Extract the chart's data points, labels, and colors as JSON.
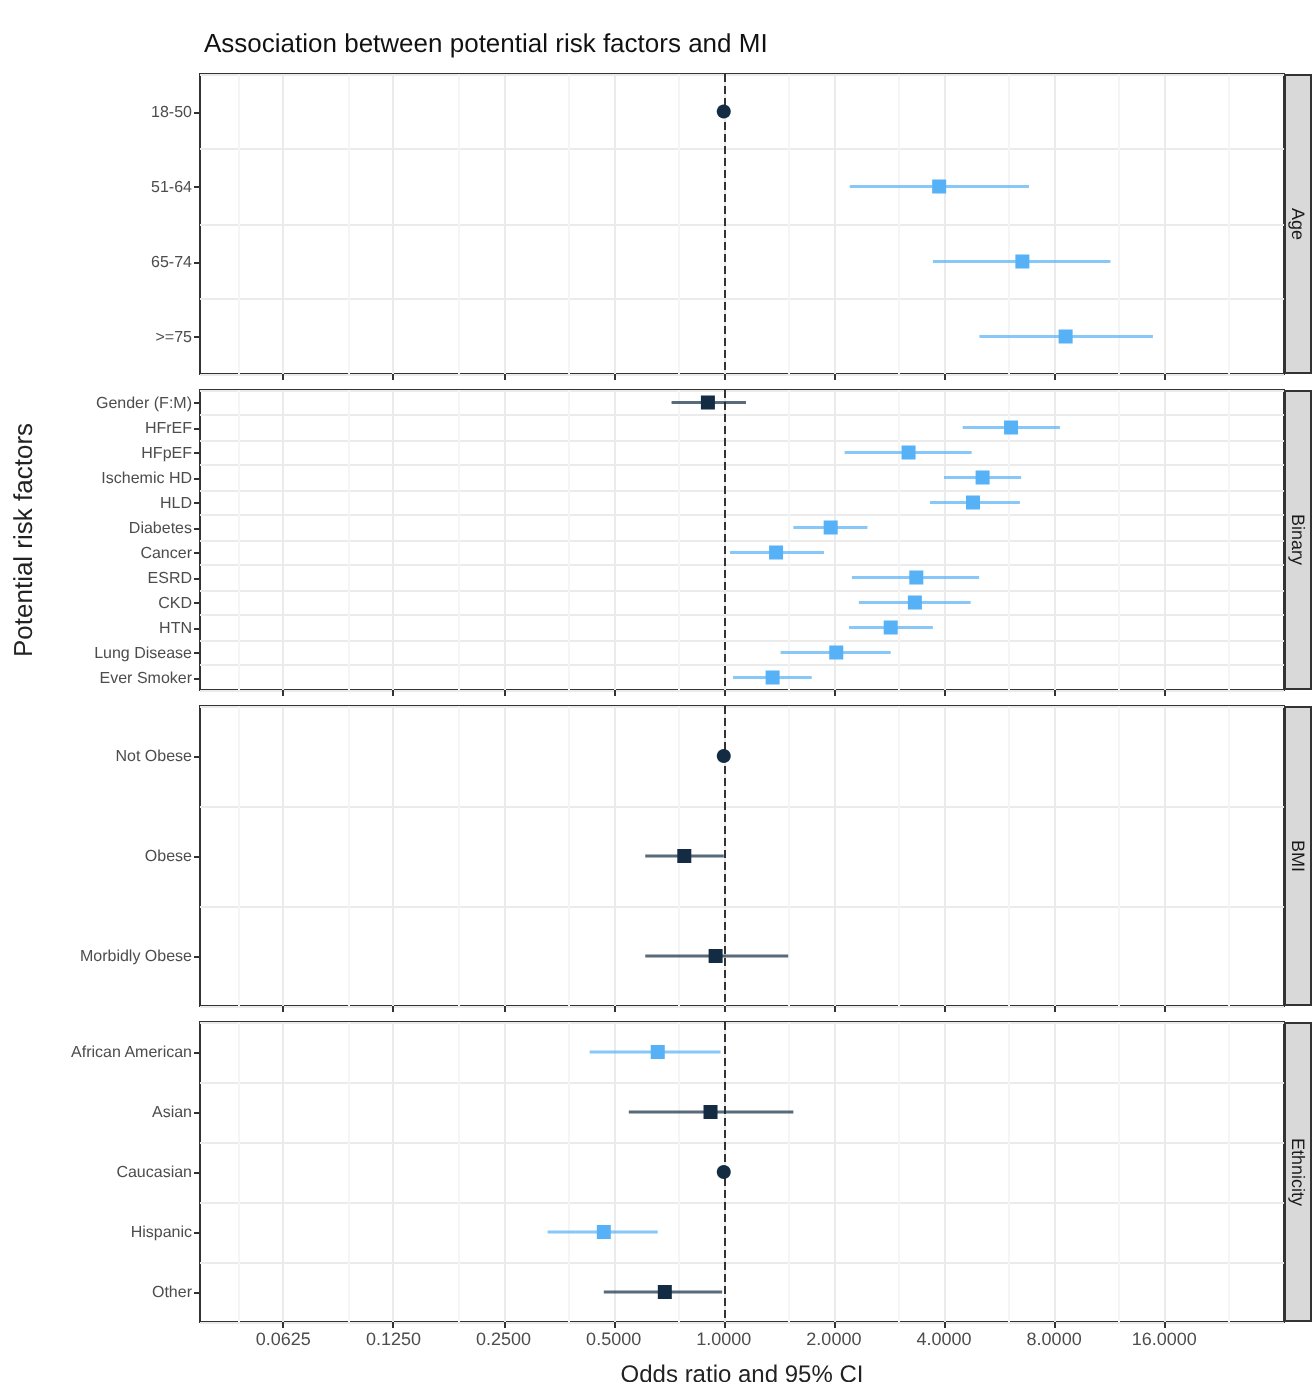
{
  "chart_data": [
    {
      "type": "scatter",
      "orientation": "horizontal",
      "title": "Association between potential risk factors and MI",
      "annotations": [
        "Age"
      ],
      "categories": [
        "18-50",
        "51-64",
        "65-74",
        ">=75"
      ],
      "log": "x",
      "xlim": [
        0.037,
        34
      ],
      "xticks": [
        {
          "value": 0.0625,
          "label": null
        },
        {
          "value": 0.125,
          "label": null
        },
        {
          "value": 0.25,
          "label": null
        },
        {
          "value": 0.5,
          "label": null
        },
        {
          "value": 1,
          "label": null
        },
        {
          "value": 2,
          "label": null
        },
        {
          "value": 4,
          "label": null
        },
        {
          "value": 8,
          "label": null
        },
        {
          "value": 16,
          "label": null
        }
      ],
      "tick_labels": "y",
      "grid": true,
      "ref_lines": [
        {
          "axis": "x",
          "value": 1,
          "color": "#333333",
          "line_style": "dashed"
        }
      ],
      "series": [
        {
          "color": "#132b43",
          "marker": "circle",
          "values": [
            1,
            null,
            null,
            null
          ]
        },
        {
          "color": "#56b1f7",
          "marker": "square",
          "values": [
            null,
            3.88,
            6.55,
            8.6
          ],
          "errors": [
            null,
            [
              2.21,
              6.83
            ],
            [
              3.73,
              11.4
            ],
            [
              5.0,
              14.9
            ]
          ]
        }
      ]
    },
    {
      "type": "scatter",
      "orientation": "horizontal",
      "ylabel": "Potential risk factors",
      "annotations": [
        "Binary"
      ],
      "categories": [
        "Gender (F:M)",
        "HFrEF",
        "HFpEF",
        "Ischemic HD",
        "HLD",
        "Diabetes",
        "Cancer",
        "ESRD",
        "CKD",
        "HTN",
        "Lung Disease",
        "Ever Smoker"
      ],
      "log": "x",
      "xlim": [
        0.037,
        34
      ],
      "xticks": [
        {
          "value": 0.0625,
          "label": null
        },
        {
          "value": 0.125,
          "label": null
        },
        {
          "value": 0.25,
          "label": null
        },
        {
          "value": 0.5,
          "label": null
        },
        {
          "value": 1,
          "label": null
        },
        {
          "value": 2,
          "label": null
        },
        {
          "value": 4,
          "label": null
        },
        {
          "value": 8,
          "label": null
        },
        {
          "value": 16,
          "label": null
        }
      ],
      "tick_labels": "y",
      "grid": true,
      "ref_lines": [
        {
          "axis": "x",
          "value": 1,
          "color": "#333333",
          "line_style": "dashed"
        }
      ],
      "series": [
        {
          "color": "#132b43",
          "marker": "square",
          "values": [
            0.905,
            null,
            null,
            null,
            null,
            null,
            null,
            null,
            null,
            null,
            null,
            null
          ],
          "errors": [
            [
              0.72,
              1.15
            ],
            null,
            null,
            null,
            null,
            null,
            null,
            null,
            null,
            null,
            null,
            null
          ]
        },
        {
          "color": "#56b1f7",
          "marker": "square",
          "values": [
            null,
            6.1,
            3.2,
            5.1,
            4.8,
            1.96,
            1.39,
            3.36,
            3.33,
            2.86,
            2.03,
            1.36
          ],
          "errors": [
            null,
            [
              4.5,
              8.3
            ],
            [
              2.14,
              4.76
            ],
            [
              4.0,
              6.5
            ],
            [
              3.66,
              6.45
            ],
            [
              1.55,
              2.47
            ],
            [
              1.04,
              1.88
            ],
            [
              2.24,
              4.99
            ],
            [
              2.34,
              4.73
            ],
            [
              2.2,
              3.73
            ],
            [
              1.43,
              2.86
            ],
            [
              1.06,
              1.74
            ]
          ]
        }
      ]
    },
    {
      "type": "scatter",
      "orientation": "horizontal",
      "annotations": [
        "BMI"
      ],
      "categories": [
        "Not Obese",
        "Obese",
        "Morbidly Obese"
      ],
      "log": "x",
      "xlim": [
        0.037,
        34
      ],
      "xticks": [
        {
          "value": 0.0625,
          "label": null
        },
        {
          "value": 0.125,
          "label": null
        },
        {
          "value": 0.25,
          "label": null
        },
        {
          "value": 0.5,
          "label": null
        },
        {
          "value": 1,
          "label": null
        },
        {
          "value": 2,
          "label": null
        },
        {
          "value": 4,
          "label": null
        },
        {
          "value": 8,
          "label": null
        },
        {
          "value": 16,
          "label": null
        }
      ],
      "tick_labels": "y",
      "grid": true,
      "ref_lines": [
        {
          "axis": "x",
          "value": 1,
          "color": "#333333",
          "line_style": "dashed"
        }
      ],
      "series": [
        {
          "color": "#132b43",
          "marker": "circle",
          "values": [
            1,
            null,
            null
          ]
        },
        {
          "color": "#132b43",
          "marker": "square",
          "values": [
            null,
            0.78,
            0.95
          ],
          "errors": [
            null,
            [
              0.61,
              1.0
            ],
            [
              0.61,
              1.5
            ]
          ]
        }
      ]
    },
    {
      "type": "scatter",
      "orientation": "horizontal",
      "xlabel": "Odds ratio and 95% CI",
      "annotations": [
        "Ethnicity"
      ],
      "categories": [
        "African American",
        "Asian",
        "Caucasian",
        "Hispanic",
        "Other"
      ],
      "log": "x",
      "xlim": [
        0.037,
        34
      ],
      "xticks": [
        0.0625,
        {
          "value": 0.125,
          "label": "0.1250"
        },
        {
          "value": 0.25,
          "label": "0.2500"
        },
        {
          "value": 0.5,
          "label": "0.5000"
        },
        {
          "value": 1,
          "label": "1.0000"
        },
        {
          "value": 2,
          "label": "2.0000"
        },
        {
          "value": 4,
          "label": "4.0000"
        },
        {
          "value": 8,
          "label": "8.0000"
        },
        {
          "value": 16,
          "label": "16.0000"
        }
      ],
      "grid": true,
      "ref_lines": [
        {
          "axis": "x",
          "value": 1,
          "color": "#333333",
          "line_style": "dashed"
        }
      ],
      "series": [
        {
          "color": "#132b43",
          "marker": "circle",
          "values": [
            null,
            null,
            1,
            null,
            null
          ]
        },
        {
          "color": "#56b1f7",
          "marker": "square",
          "values": [
            0.66,
            null,
            null,
            0.47,
            null
          ],
          "errors": [
            [
              0.43,
              0.98
            ],
            null,
            null,
            [
              0.33,
              0.66
            ],
            null
          ]
        },
        {
          "color": "#132b43",
          "marker": "square",
          "values": [
            null,
            0.92,
            null,
            null,
            0.69
          ],
          "errors": [
            null,
            [
              0.55,
              1.55
            ],
            null,
            null,
            [
              0.47,
              0.99
            ]
          ]
        }
      ]
    }
  ]
}
